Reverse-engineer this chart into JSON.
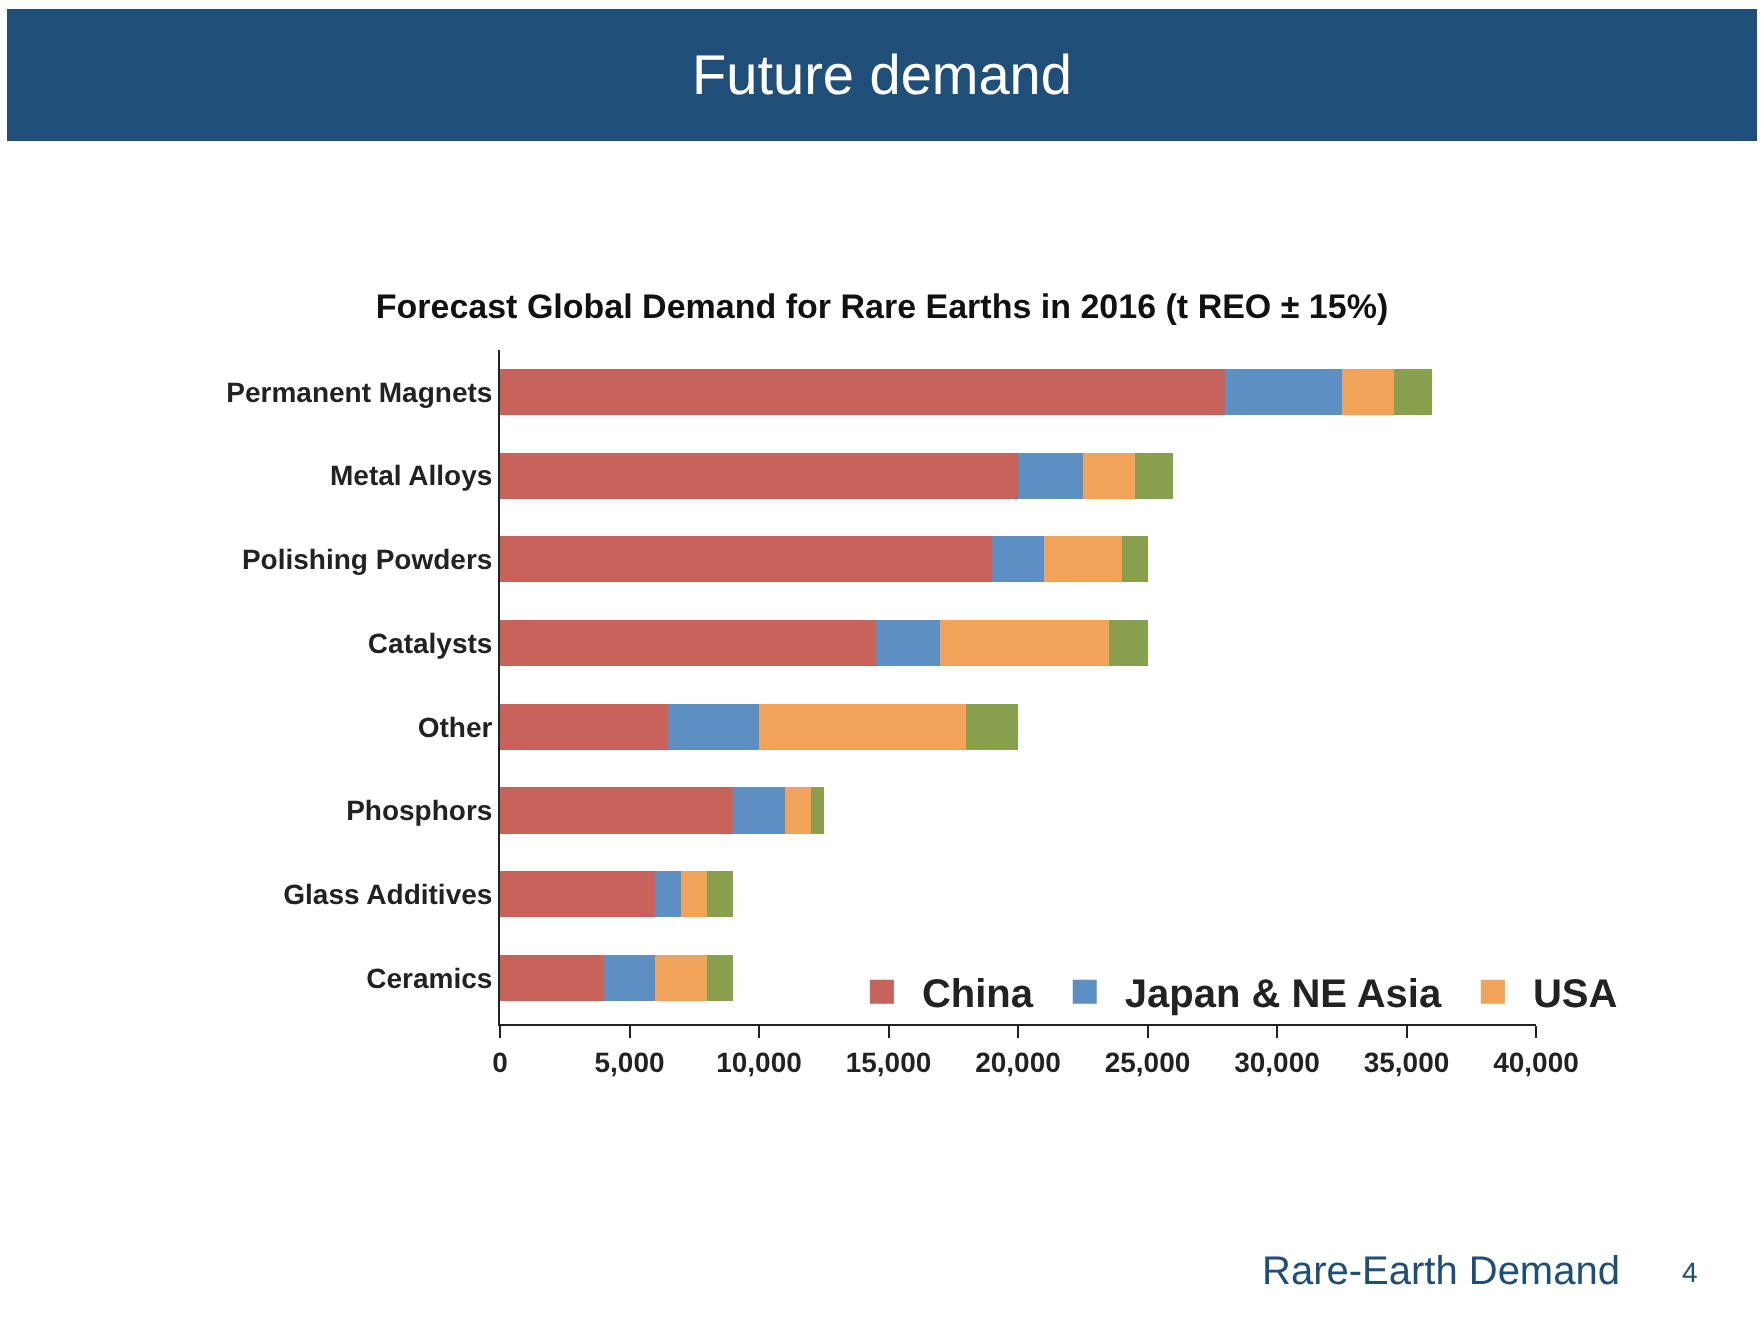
{
  "chart_data": {
    "type": "bar",
    "orientation": "horizontal",
    "stacked": true,
    "title": "Forecast Global Demand for Rare Earths in 2016 (t REO ± 15%)",
    "categories": [
      "Permanent Magnets",
      "Metal Alloys",
      "Polishing Powders",
      "Catalysts",
      "Other",
      "Phosphors",
      "Glass Additives",
      "Ceramics"
    ],
    "series": [
      {
        "name": "China",
        "color": "#c8635b",
        "values": [
          28000,
          20000,
          19000,
          14500,
          6500,
          9000,
          6000,
          4000
        ]
      },
      {
        "name": "Japan & NE Asia",
        "color": "#5e8fc2",
        "values": [
          4500,
          2500,
          2000,
          2500,
          3500,
          2000,
          1000,
          2000
        ]
      },
      {
        "name": "USA",
        "color": "#f2a35a",
        "values": [
          2000,
          2000,
          3000,
          6500,
          8000,
          1000,
          1000,
          2000
        ]
      },
      {
        "color": "#889f4e",
        "values": [
          1500,
          1500,
          1000,
          1500,
          2000,
          500,
          1000,
          1000
        ]
      }
    ],
    "xlim": [
      0,
      40000
    ],
    "xticks": [
      {
        "value": 0,
        "label": "0"
      },
      {
        "value": 5000,
        "label": "5,000"
      },
      {
        "value": 10000,
        "label": "10,000"
      },
      {
        "value": 15000,
        "label": "15,000"
      },
      {
        "value": 20000,
        "label": "20,000"
      },
      {
        "value": 25000,
        "label": "25,000"
      },
      {
        "value": 30000,
        "label": "30,000"
      },
      {
        "value": 35000,
        "label": "35,000"
      },
      {
        "value": 40000,
        "label": "40,000"
      }
    ],
    "legend": "bottom right",
    "annotations": [
      "Future demand",
      "Rare-Earth Demand",
      "4"
    ]
  }
}
